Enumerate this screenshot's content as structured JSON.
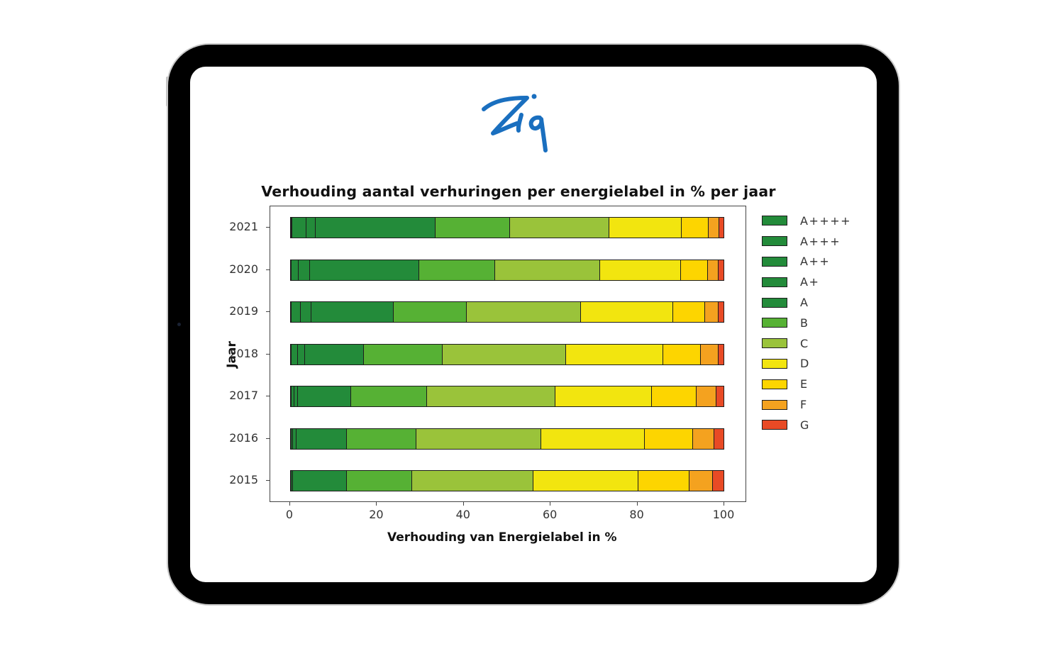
{
  "brand": {
    "logo_text": "Ziq",
    "logo_color": "#1A6FBF"
  },
  "chart_data": {
    "type": "bar",
    "orientation": "horizontal",
    "stacked": true,
    "title": "Verhouding aantal verhuringen per energielabel in % per jaar",
    "xlabel": "Verhouding van Energielabel in %",
    "ylabel": "Jaar",
    "xlim": [
      0,
      105
    ],
    "xticks": [
      0,
      20,
      40,
      60,
      80,
      100
    ],
    "grid": false,
    "legend_position": "right-outside",
    "categories": [
      "2021",
      "2020",
      "2019",
      "2018",
      "2017",
      "2016",
      "2015"
    ],
    "series": [
      {
        "name": "A++++",
        "color": "#238B3A",
        "values": [
          0.1,
          0.0,
          0.0,
          0.0,
          0.0,
          0.0,
          0.0
        ]
      },
      {
        "name": "A+++",
        "color": "#238B3A",
        "values": [
          0.1,
          0.1,
          0.1,
          0.1,
          0.1,
          0.1,
          0.0
        ]
      },
      {
        "name": "A++",
        "color": "#238B3A",
        "values": [
          3.2,
          1.7,
          2.1,
          1.4,
          0.7,
          0.4,
          0.1
        ]
      },
      {
        "name": "A+",
        "color": "#238B3A",
        "values": [
          2.2,
          2.6,
          2.5,
          1.7,
          0.8,
          0.8,
          0.3
        ]
      },
      {
        "name": "A",
        "color": "#238B3A",
        "values": [
          27.7,
          25.1,
          18.9,
          13.5,
          12.2,
          11.6,
          12.5
        ]
      },
      {
        "name": "B",
        "color": "#56B134",
        "values": [
          17.1,
          17.6,
          16.9,
          18.2,
          17.6,
          16.0,
          15.0
        ]
      },
      {
        "name": "C",
        "color": "#9AC33A",
        "values": [
          23.0,
          24.1,
          26.3,
          28.4,
          29.5,
          28.8,
          27.9
        ]
      },
      {
        "name": "D",
        "color": "#F2E50F",
        "values": [
          16.6,
          18.6,
          21.3,
          22.4,
          22.2,
          23.9,
          24.2
        ]
      },
      {
        "name": "E",
        "color": "#FDD500",
        "values": [
          6.3,
          6.2,
          7.3,
          8.7,
          10.4,
          11.0,
          11.9
        ]
      },
      {
        "name": "F",
        "color": "#F4A21F",
        "values": [
          2.4,
          2.5,
          3.1,
          4.1,
          4.6,
          4.9,
          5.3
        ]
      },
      {
        "name": "G",
        "color": "#E84A25",
        "values": [
          1.3,
          1.5,
          1.5,
          1.5,
          1.9,
          2.5,
          2.8
        ]
      }
    ]
  }
}
